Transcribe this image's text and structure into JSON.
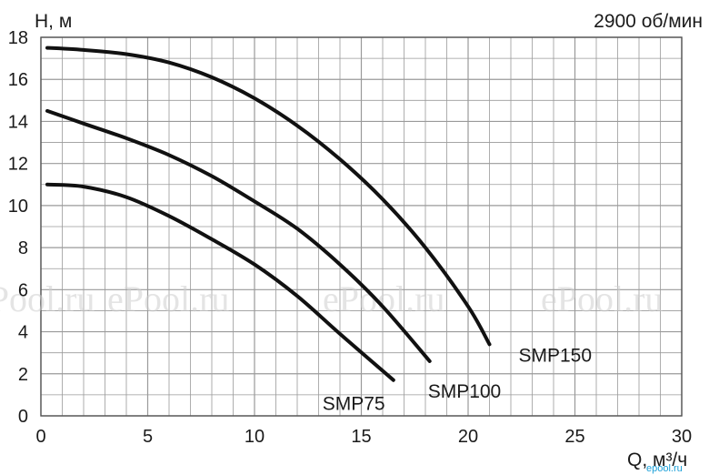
{
  "chart_data": {
    "type": "line",
    "ylabel": "H, м",
    "xlabel": "Q, м³/ч",
    "annotation": "2900 об/мин",
    "xlim": [
      0,
      30
    ],
    "ylim": [
      0,
      18
    ],
    "x_ticks": [
      0,
      5,
      10,
      15,
      20,
      25,
      30
    ],
    "y_ticks": [
      0,
      2,
      4,
      6,
      8,
      10,
      12,
      14,
      16,
      18
    ],
    "grid": true,
    "minor_grid_x_step": 1,
    "series": [
      {
        "name": "SMP75",
        "x": [
          0.3,
          2,
          4,
          6,
          8,
          10,
          12,
          14,
          16.5
        ],
        "y": [
          11,
          10.9,
          10.4,
          9.5,
          8.4,
          7.2,
          5.7,
          3.9,
          1.7
        ]
      },
      {
        "name": "SMP100",
        "x": [
          0.3,
          2,
          4,
          6,
          8,
          10,
          12,
          14,
          16,
          18.2
        ],
        "y": [
          14.5,
          13.9,
          13.2,
          12.4,
          11.4,
          10.2,
          8.9,
          7.2,
          5.2,
          2.6
        ]
      },
      {
        "name": "SMP150",
        "x": [
          0.3,
          2,
          4,
          6,
          8,
          10,
          12,
          14,
          16,
          18,
          20,
          21
        ],
        "y": [
          17.5,
          17.4,
          17.2,
          16.8,
          16.1,
          15.1,
          13.8,
          12.2,
          10.3,
          8.0,
          5.2,
          3.4
        ]
      }
    ]
  },
  "watermark": "ePool.ru",
  "watermark_corner": "epool.ru",
  "colors": {
    "line": "#111111",
    "grid": "#9a9a9a",
    "text": "#1a1a1a"
  }
}
